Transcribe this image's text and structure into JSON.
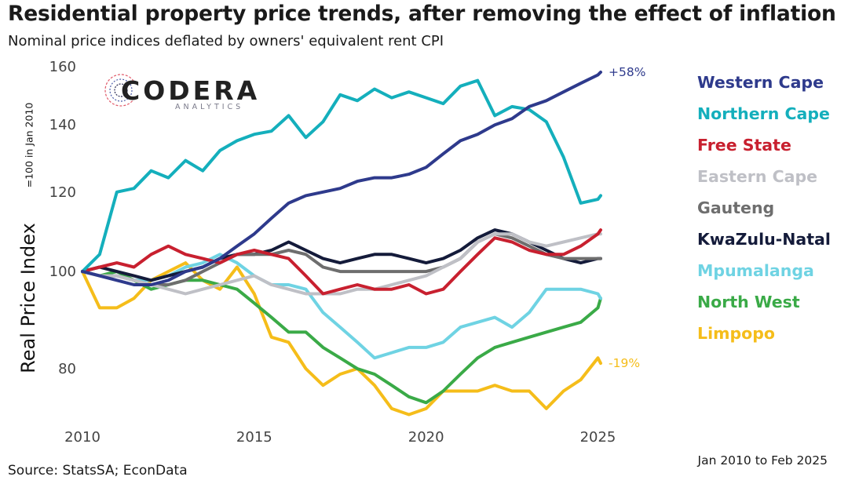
{
  "title": "Residential property price trends, after removing the effect of inflation",
  "subtitle": "Nominal price indices deflated by owners' equivalent rent CPI",
  "source": "Source: StatsSA; EconData",
  "date_range": "Jan 2010 to Feb 2025",
  "logo": {
    "name": "CODERA",
    "sub": "ANALYTICS"
  },
  "chart_data": {
    "type": "line",
    "title": "Residential property price trends, after removing the effect of inflation",
    "subtitle": "Nominal price indices deflated by owners' equivalent rent CPI",
    "ylabel": "Real Price Index",
    "ylabel_note": "=100 in Jan 2010",
    "xlabel": "",
    "log_scale_y": true,
    "ylim": [
      72,
      162
    ],
    "xlim": [
      2010,
      2025.6
    ],
    "yticks": [
      80,
      100,
      120,
      140,
      160
    ],
    "xticks": [
      2010,
      2015,
      2020,
      2025
    ],
    "grid": false,
    "legend_position": "right",
    "x": [
      2010.0,
      2010.5,
      2011.0,
      2011.5,
      2012.0,
      2012.5,
      2013.0,
      2013.5,
      2014.0,
      2014.5,
      2015.0,
      2015.5,
      2016.0,
      2016.5,
      2017.0,
      2017.5,
      2018.0,
      2018.5,
      2019.0,
      2019.5,
      2020.0,
      2020.5,
      2021.0,
      2021.5,
      2022.0,
      2022.5,
      2023.0,
      2023.5,
      2024.0,
      2024.5,
      2025.0,
      2025.08
    ],
    "annotations": [
      {
        "series": "Western Cape",
        "text": "+58%",
        "color": "#2E3A8C"
      },
      {
        "series": "Limpopo",
        "text": "-19%",
        "color": "#F5BD1A"
      }
    ],
    "series": [
      {
        "name": "Western Cape",
        "color": "#2E3A8C",
        "values": [
          100,
          99,
          98,
          97,
          97,
          98,
          100,
          101,
          103,
          106,
          109,
          113,
          117,
          119,
          120,
          121,
          123,
          124,
          124,
          125,
          127,
          131,
          135,
          137,
          140,
          142,
          146,
          148,
          151,
          154,
          157,
          158
        ]
      },
      {
        "name": "Northern Cape",
        "color": "#14AFBC",
        "values": [
          100,
          104,
          120,
          121,
          126,
          124,
          129,
          126,
          132,
          135,
          137,
          138,
          143,
          136,
          141,
          150,
          148,
          152,
          149,
          151,
          149,
          147,
          153,
          155,
          143,
          146,
          145,
          141,
          130,
          117,
          118,
          119
        ]
      },
      {
        "name": "Free State",
        "color": "#C8202F",
        "values": [
          100,
          101,
          102,
          101,
          104,
          106,
          104,
          103,
          102,
          104,
          105,
          104,
          103,
          99,
          95,
          96,
          97,
          96,
          96,
          97,
          95,
          96,
          100,
          104,
          108,
          107,
          105,
          104,
          104,
          106,
          109,
          110
        ]
      },
      {
        "name": "Eastern Cape",
        "color": "#BFC0C6",
        "values": [
          100,
          99,
          99,
          98,
          97,
          96,
          95,
          96,
          97,
          98,
          99,
          97,
          96,
          95,
          95,
          95,
          96,
          96,
          97,
          98,
          99,
          101,
          103,
          107,
          109,
          109,
          107,
          106,
          107,
          108,
          109,
          109
        ]
      },
      {
        "name": "Gauteng",
        "color": "#6E6E6E",
        "values": [
          100,
          99,
          99,
          98,
          97,
          97,
          98,
          100,
          102,
          104,
          104,
          104,
          105,
          104,
          101,
          100,
          100,
          100,
          100,
          100,
          100,
          101,
          103,
          107,
          109,
          108,
          106,
          104,
          103,
          103,
          103,
          103
        ]
      },
      {
        "name": "KwaZulu-Natal",
        "color": "#141B3A",
        "values": [
          100,
          101,
          100,
          99,
          98,
          99,
          100,
          101,
          103,
          104,
          104,
          105,
          107,
          105,
          103,
          102,
          103,
          104,
          104,
          103,
          102,
          103,
          105,
          108,
          110,
          109,
          107,
          105,
          103,
          102,
          103,
          103
        ]
      },
      {
        "name": "Mpumalanga",
        "color": "#6FD3E3",
        "values": [
          100,
          99,
          99,
          98,
          98,
          99,
          101,
          102,
          104,
          102,
          99,
          97,
          97,
          96,
          91,
          88,
          85,
          82,
          83,
          84,
          84,
          85,
          88,
          89,
          90,
          88,
          91,
          96,
          96,
          96,
          95,
          94
        ]
      },
      {
        "name": "North West",
        "color": "#3AAA47",
        "values": [
          100,
          99,
          100,
          98,
          96,
          97,
          98,
          98,
          97,
          96,
          93,
          90,
          87,
          87,
          84,
          82,
          80,
          79,
          77,
          75,
          74,
          76,
          79,
          82,
          84,
          85,
          86,
          87,
          88,
          89,
          92,
          94
        ]
      },
      {
        "name": "Limpopo",
        "color": "#F5BD1A",
        "values": [
          100,
          92,
          92,
          94,
          98,
          100,
          102,
          98,
          96,
          101,
          95,
          86,
          85,
          80,
          77,
          79,
          80,
          77,
          73,
          72,
          73,
          76,
          76,
          76,
          77,
          76,
          76,
          73,
          76,
          78,
          82,
          81
        ]
      }
    ]
  }
}
